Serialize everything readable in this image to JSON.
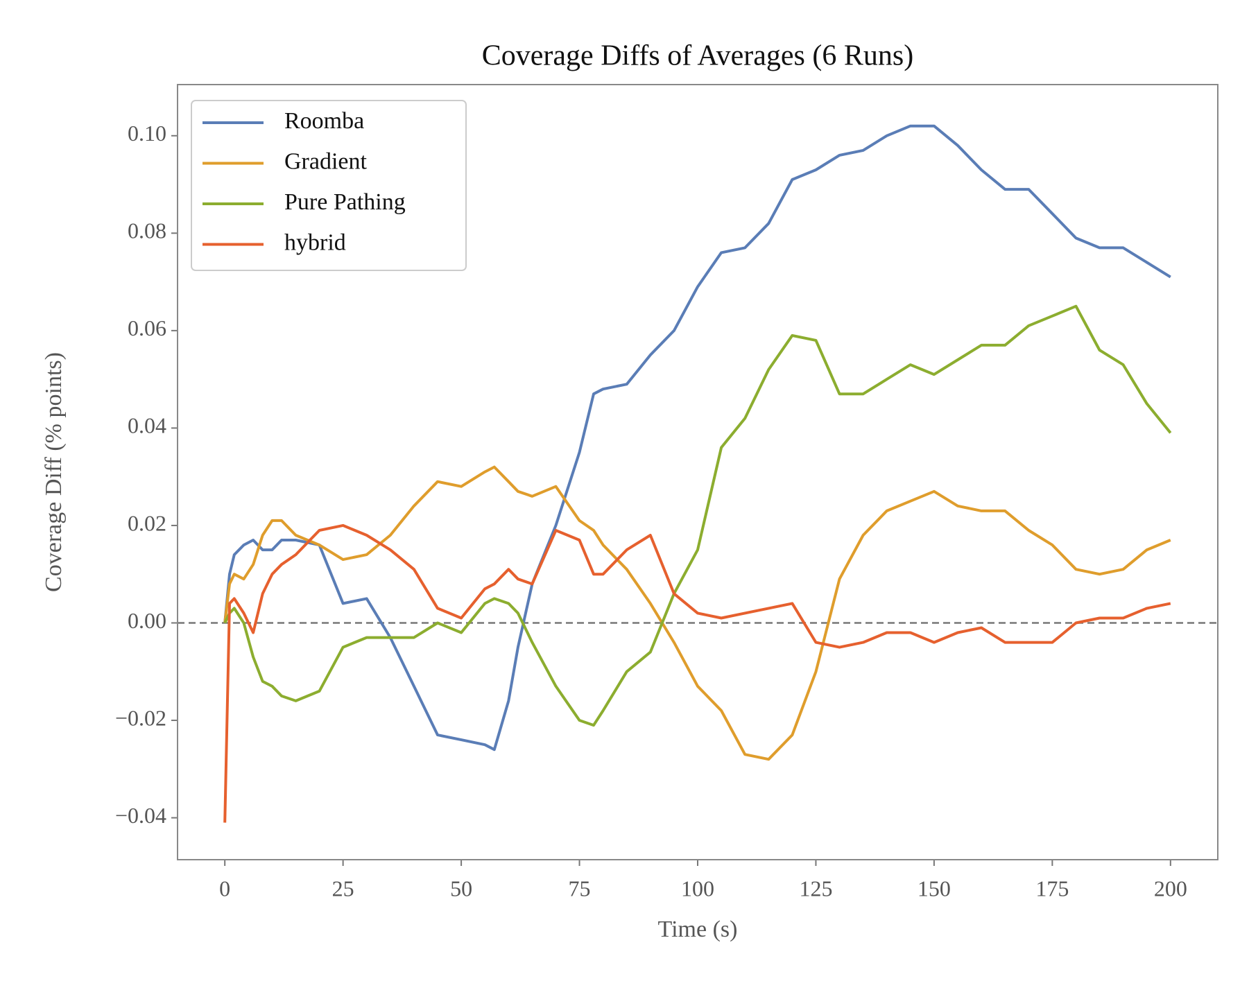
{
  "chart_data": {
    "type": "line",
    "title": "Coverage Diffs of Averages (6 Runs)",
    "x_label": "Time (s)",
    "y_label": "Coverage Diff (% points)",
    "x": [
      0,
      1,
      2,
      4,
      6,
      8,
      10,
      12,
      15,
      20,
      25,
      30,
      35,
      40,
      45,
      50,
      55,
      57,
      60,
      62,
      65,
      70,
      75,
      78,
      80,
      85,
      90,
      95,
      100,
      105,
      110,
      115,
      120,
      125,
      130,
      135,
      140,
      145,
      150,
      155,
      160,
      165,
      170,
      175,
      180,
      185,
      190,
      195,
      200
    ],
    "series": [
      {
        "name": "Roomba",
        "color": "#5a7db6",
        "values": [
          0,
          0.01,
          0.014,
          0.016,
          0.017,
          0.015,
          0.015,
          0.017,
          0.017,
          0.016,
          0.004,
          0.005,
          -0.003,
          -0.013,
          -0.023,
          -0.024,
          -0.025,
          -0.026,
          -0.016,
          -0.005,
          0.008,
          0.02,
          0.035,
          0.047,
          0.048,
          0.049,
          0.055,
          0.06,
          0.069,
          0.076,
          0.077,
          0.082,
          0.091,
          0.093,
          0.096,
          0.097,
          0.1,
          0.102,
          0.102,
          0.098,
          0.093,
          0.089,
          0.089,
          0.084,
          0.079,
          0.077,
          0.077,
          0.074,
          0.071
        ]
      },
      {
        "name": "Gradient",
        "color": "#df9d2c",
        "values": [
          0,
          0.008,
          0.01,
          0.009,
          0.012,
          0.018,
          0.021,
          0.021,
          0.018,
          0.016,
          0.013,
          0.014,
          0.018,
          0.024,
          0.029,
          0.028,
          0.031,
          0.032,
          0.029,
          0.027,
          0.026,
          0.028,
          0.021,
          0.019,
          0.016,
          0.011,
          0.004,
          -0.004,
          -0.013,
          -0.018,
          -0.027,
          -0.028,
          -0.023,
          -0.01,
          0.009,
          0.018,
          0.023,
          0.025,
          0.027,
          0.024,
          0.023,
          0.023,
          0.019,
          0.016,
          0.011,
          0.01,
          0.011,
          0.015,
          0.017
        ]
      },
      {
        "name": "Pure Pathing",
        "color": "#8cad2f",
        "values": [
          0,
          0.002,
          0.003,
          0.0,
          -0.007,
          -0.012,
          -0.013,
          -0.015,
          -0.016,
          -0.014,
          -0.005,
          -0.003,
          -0.003,
          -0.003,
          0.0,
          -0.002,
          0.004,
          0.005,
          0.004,
          0.002,
          -0.004,
          -0.013,
          -0.02,
          -0.021,
          -0.018,
          -0.01,
          -0.006,
          0.006,
          0.015,
          0.036,
          0.042,
          0.052,
          0.059,
          0.058,
          0.047,
          0.047,
          0.05,
          0.053,
          0.051,
          0.054,
          0.057,
          0.057,
          0.061,
          0.063,
          0.065,
          0.056,
          0.053,
          0.045,
          0.039
        ]
      },
      {
        "name": "hybrid",
        "color": "#e6602e",
        "values": [
          -0.041,
          0.004,
          0.005,
          0.002,
          -0.002,
          0.006,
          0.01,
          0.012,
          0.014,
          0.019,
          0.02,
          0.018,
          0.015,
          0.011,
          0.003,
          0.001,
          0.007,
          0.008,
          0.011,
          0.009,
          0.008,
          0.019,
          0.017,
          0.01,
          0.01,
          0.015,
          0.018,
          0.006,
          0.002,
          0.001,
          0.002,
          0.003,
          0.004,
          -0.004,
          -0.005,
          -0.004,
          -0.002,
          -0.002,
          -0.004,
          -0.002,
          -0.001,
          -0.004,
          -0.004,
          -0.004,
          0.0,
          0.001,
          0.001,
          0.003,
          0.004
        ]
      }
    ],
    "xlim": [
      -10,
      210
    ],
    "ylim": [
      -0.0486,
      0.1105
    ],
    "xticks": [
      0,
      25,
      50,
      75,
      100,
      125,
      150,
      175,
      200
    ],
    "yticks": [
      {
        "value": -0.04,
        "label": "−0.04"
      },
      {
        "value": -0.02,
        "label": "−0.02"
      },
      {
        "value": 0,
        "label": "0.00"
      },
      {
        "value": 0.02,
        "label": "0.02"
      },
      {
        "value": 0.04,
        "label": "0.04"
      },
      {
        "value": 0.06,
        "label": "0.06"
      },
      {
        "value": 0.08,
        "label": "0.08"
      },
      {
        "value": 0.1,
        "label": "0.10"
      }
    ],
    "hline": 0,
    "grid": false,
    "legend": "upper-left"
  }
}
